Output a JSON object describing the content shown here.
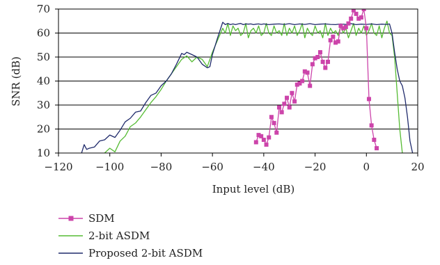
{
  "chart_data": {
    "type": "line",
    "title": "",
    "xlabel": "Input level (dB)",
    "ylabel": "SNR (dB)",
    "xlim": [
      -120,
      20
    ],
    "ylim": [
      10,
      70
    ],
    "x_ticks": [
      -120,
      -100,
      -80,
      -60,
      -40,
      -20,
      0,
      20
    ],
    "y_ticks": [
      10,
      20,
      30,
      40,
      50,
      60,
      70
    ],
    "x_tick_labels": [
      "−120",
      "−100",
      "−80",
      "−60",
      "−40",
      "−20",
      "0",
      "20"
    ],
    "y_tick_labels": [
      "10",
      "20",
      "30",
      "40",
      "50",
      "60",
      "70"
    ],
    "grid": {
      "horizontal": true,
      "vertical": false
    },
    "legend_position": "bottom-left",
    "series": [
      {
        "name": "SDM",
        "color": "#cc44aa",
        "marker": "square",
        "x": [
          -43,
          -42,
          -41,
          -40,
          -39,
          -38,
          -37,
          -36,
          -35,
          -34,
          -33,
          -32,
          -31,
          -30,
          -29,
          -28,
          -27,
          -26,
          -25,
          -24,
          -23,
          -22,
          -21,
          -20,
          -19,
          -18,
          -17,
          -16,
          -15,
          -14,
          -13,
          -12,
          -11,
          -10,
          -9,
          -8,
          -7,
          -6,
          -5,
          -4,
          -3,
          -2,
          -1,
          0,
          1,
          2,
          3,
          4
        ],
        "y": [
          14.5,
          17.5,
          17,
          15.5,
          13.5,
          16.5,
          25,
          22.5,
          18.5,
          29,
          27,
          30.5,
          33,
          29,
          35,
          31.5,
          38.5,
          39,
          40,
          44,
          43.5,
          38,
          47,
          49.5,
          50,
          52,
          48,
          45.5,
          48,
          57,
          58.5,
          56,
          56.5,
          63,
          62,
          62.5,
          64,
          66,
          69.5,
          68,
          66,
          66.5,
          70,
          62,
          32.5,
          21.5,
          15.5,
          12
        ]
      },
      {
        "name": "2-bit ASDM",
        "color": "#55bb33",
        "marker": "none",
        "x": [
          -102,
          -100,
          -98,
          -96,
          -94,
          -92,
          -90,
          -88,
          -86,
          -84,
          -82,
          -80,
          -78,
          -76,
          -74,
          -72,
          -70,
          -68,
          -66,
          -64,
          -62,
          -60,
          -58,
          -56,
          -55,
          -54,
          -53,
          -52,
          -51,
          -50,
          -49,
          -48,
          -47,
          -46,
          -45,
          -44,
          -43,
          -42,
          -41,
          -40,
          -39,
          -38,
          -37,
          -36,
          -35,
          -34,
          -33,
          -32,
          -31,
          -30,
          -29,
          -28,
          -27,
          -26,
          -25,
          -24,
          -23,
          -22,
          -21,
          -20,
          -19,
          -18,
          -17,
          -16,
          -15,
          -14,
          -13,
          -12,
          -11,
          -10,
          -9,
          -8,
          -7,
          -6,
          -5,
          -4,
          -3,
          -2,
          -1,
          0,
          1,
          2,
          3,
          4,
          5,
          6,
          7,
          8,
          9,
          10,
          11,
          12,
          13,
          14
        ],
        "y": [
          10,
          12,
          10.5,
          15,
          17,
          21,
          22.5,
          25,
          28,
          31,
          33.5,
          36.5,
          40,
          43,
          46,
          49,
          50.5,
          48,
          50,
          49,
          46,
          52,
          57,
          62,
          60,
          64,
          59,
          63,
          61,
          62,
          59,
          60,
          64,
          58,
          61,
          62,
          60,
          63,
          59,
          60,
          64,
          60,
          59,
          63,
          60,
          61,
          59,
          64,
          59,
          62,
          60,
          63,
          59,
          61,
          64,
          58,
          62,
          60,
          59,
          63,
          60,
          61,
          58,
          64,
          59,
          62,
          60,
          61,
          59,
          63,
          60,
          62,
          58,
          61,
          64,
          59,
          62,
          60,
          63,
          59,
          61,
          64,
          60,
          59,
          63,
          58,
          62,
          65,
          60,
          59,
          50,
          35,
          20,
          10
        ]
      },
      {
        "name": "Proposed 2-bit ASDM",
        "color": "#1f2a6b",
        "marker": "none",
        "x": [
          -111,
          -110,
          -109,
          -108,
          -106,
          -104,
          -102,
          -100,
          -98,
          -96,
          -94,
          -92,
          -90,
          -88,
          -86,
          -84,
          -82,
          -80,
          -78,
          -76,
          -74,
          -72,
          -71,
          -70,
          -68,
          -66,
          -64,
          -62,
          -61,
          -60,
          -58,
          -56,
          -55,
          -54,
          -53,
          -52,
          -51,
          -50,
          -49,
          -48,
          -47,
          -46,
          -45,
          -44,
          -43,
          -42,
          -41,
          -40,
          -38,
          -36,
          -34,
          -32,
          -30,
          -28,
          -26,
          -24,
          -22,
          -20,
          -18,
          -16,
          -14,
          -12,
          -10,
          -8,
          -6,
          -4,
          -2,
          0,
          2,
          4,
          6,
          8,
          9,
          10,
          11,
          12,
          13,
          14,
          15,
          16,
          17,
          18
        ],
        "y": [
          10,
          13.5,
          11.5,
          12,
          12.5,
          15,
          15.5,
          17.5,
          16.5,
          19.5,
          23,
          24.5,
          27,
          27.5,
          31,
          34,
          35,
          38,
          40,
          43,
          47,
          51.5,
          51,
          52,
          51,
          50,
          47,
          45.5,
          46,
          51,
          58,
          64.5,
          63.5,
          64,
          63.5,
          63.8,
          63.5,
          63.8,
          64,
          63.5,
          63.8,
          63.7,
          63.8,
          63.5,
          63.7,
          63.8,
          63.6,
          63.8,
          63.5,
          63.7,
          63.8,
          63.6,
          63.9,
          63.5,
          63.8,
          63.6,
          63.9,
          63.5,
          63.7,
          63.8,
          63.6,
          63.5,
          63.8,
          63.6,
          63.9,
          63.5,
          63.7,
          63.6,
          63.8,
          63.5,
          63.7,
          63.6,
          63.8,
          60,
          52,
          45,
          40,
          38,
          33,
          25,
          15,
          10
        ]
      }
    ]
  }
}
